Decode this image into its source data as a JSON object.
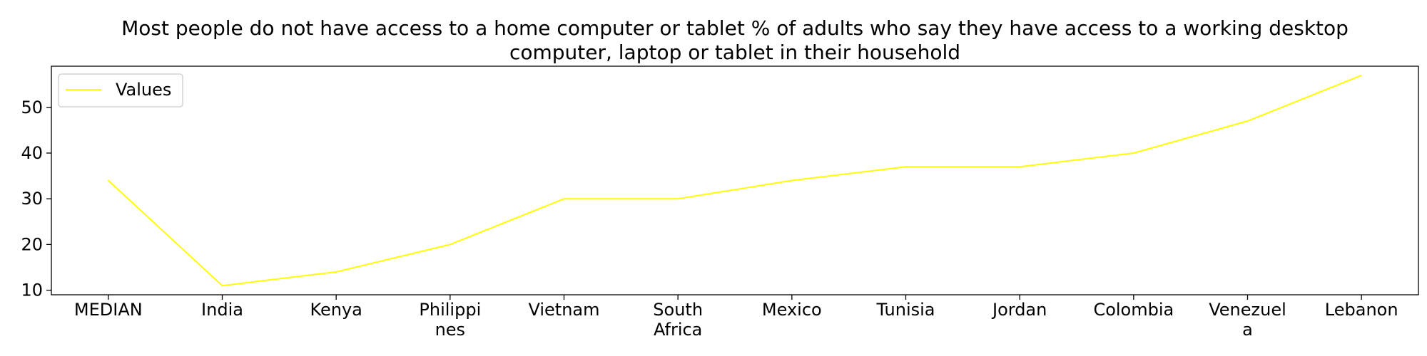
{
  "chart_data": {
    "type": "line",
    "title_lines": [
      "Most people do not have access to a home computer or tablet % of adults who say they have access to a working desktop",
      "computer, laptop or tablet in their household"
    ],
    "categories": [
      "MEDIAN",
      "India",
      "Kenya",
      "Philippines",
      "Vietnam",
      "South Africa",
      "Mexico",
      "Tunisia",
      "Jordan",
      "Colombia",
      "Venezuela",
      "Lebanon"
    ],
    "category_labels": [
      [
        "MEDIAN"
      ],
      [
        "India"
      ],
      [
        "Kenya"
      ],
      [
        "Philippi",
        "nes"
      ],
      [
        "Vietnam"
      ],
      [
        "South",
        "Africa"
      ],
      [
        "Mexico"
      ],
      [
        "Tunisia"
      ],
      [
        "Jordan"
      ],
      [
        "Colombia"
      ],
      [
        "Venezuel",
        "a"
      ],
      [
        "Lebanon"
      ]
    ],
    "series": [
      {
        "name": "Values",
        "values": [
          34,
          11,
          14,
          20,
          30,
          30,
          34,
          37,
          37,
          40,
          47,
          57
        ],
        "color": "#ffff00"
      }
    ],
    "xlabel": "",
    "ylabel": "",
    "ylim": [
      9,
      59
    ],
    "yticks": [
      10,
      20,
      30,
      40,
      50
    ],
    "grid": false,
    "legend_position": "top-left"
  }
}
